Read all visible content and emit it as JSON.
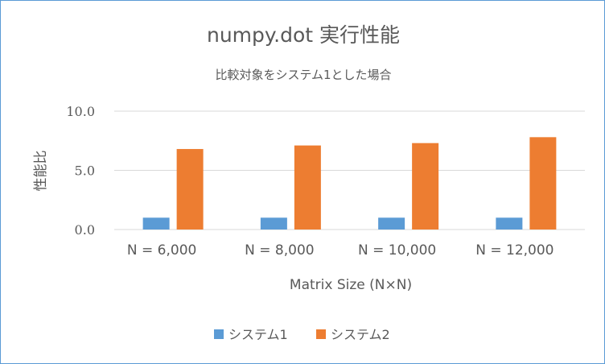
{
  "chart_data": {
    "type": "bar",
    "title": "numpy.dot 実行性能",
    "subtitle": "比較対象をシステム1とした場合",
    "xlabel": "Matrix Size (N×N)",
    "ylabel": "性能比",
    "categories": [
      "N = 6,000",
      "N = 8,000",
      "N = 10,000",
      "N = 12,000"
    ],
    "series": [
      {
        "name": "システム1",
        "color": "#5b9bd5",
        "values": [
          1.0,
          1.0,
          1.0,
          1.0
        ]
      },
      {
        "name": "システム2",
        "color": "#ed7d31",
        "values": [
          6.8,
          7.1,
          7.3,
          7.8
        ]
      }
    ],
    "ylim": [
      0,
      10
    ],
    "yticks": [
      0,
      5,
      10
    ],
    "ytick_labels": [
      "0.0",
      "5.0",
      "10.0"
    ],
    "grid": true,
    "legend_position": "bottom"
  }
}
